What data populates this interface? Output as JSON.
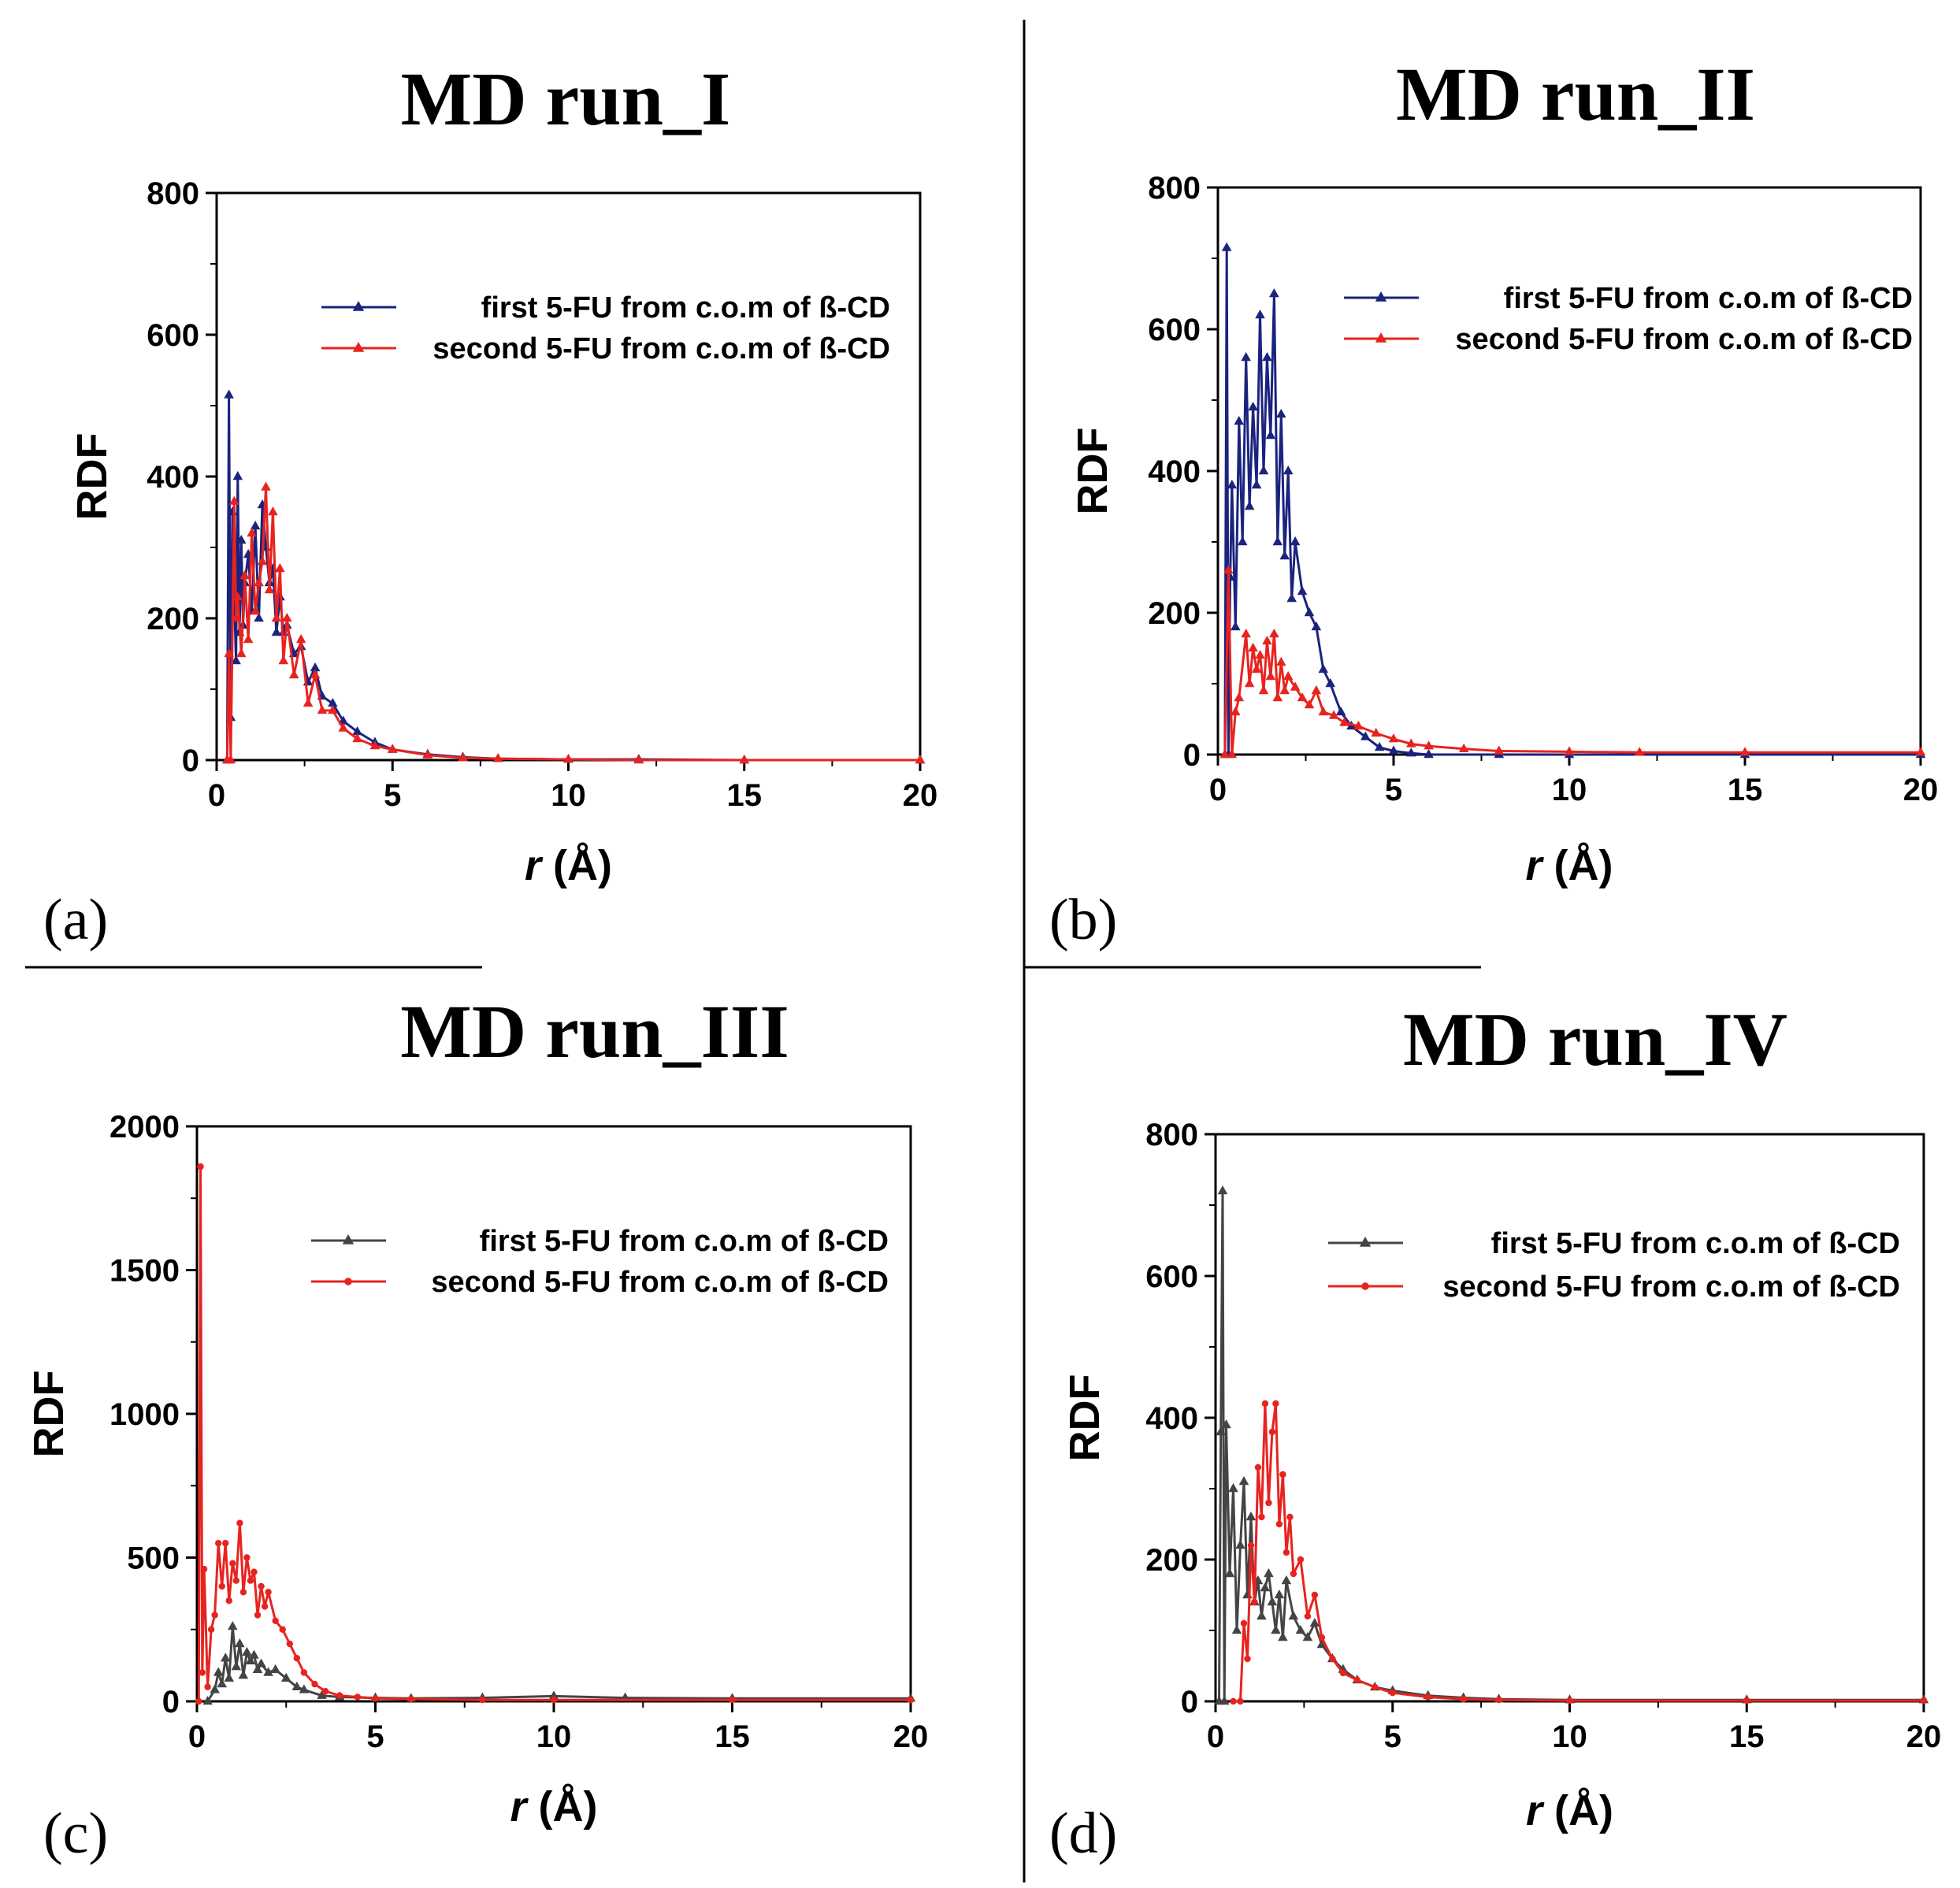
{
  "chart_data": [
    {
      "panel": "(a)",
      "title": "MD run_I",
      "type": "line",
      "ylabel": "RDF",
      "xlabel_italic": "r",
      "xlabel_rest": " (Å)",
      "xlim": [
        0,
        20
      ],
      "ylim": [
        0,
        800
      ],
      "xticks": [
        0,
        5,
        10,
        15,
        20
      ],
      "yticks": [
        0,
        200,
        400,
        600,
        800
      ],
      "legend": "top-right",
      "series": [
        {
          "name": "first 5-FU from c.o.m of ß-CD",
          "color": "#1a237e",
          "marker": "triangle",
          "x": [
            0.3,
            0.35,
            0.4,
            0.45,
            0.5,
            0.55,
            0.6,
            0.65,
            0.7,
            0.75,
            0.8,
            0.9,
            1.0,
            1.1,
            1.2,
            1.3,
            1.4,
            1.5,
            1.6,
            1.7,
            1.8,
            1.9,
            2.0,
            2.2,
            2.4,
            2.6,
            2.8,
            3.0,
            3.3,
            3.6,
            4.0,
            4.5,
            5.0,
            6.0,
            7.0,
            8.0,
            10.0,
            12.0,
            15.0,
            20.0
          ],
          "y": [
            0,
            515,
            60,
            350,
            230,
            140,
            400,
            180,
            310,
            190,
            250,
            290,
            210,
            330,
            200,
            360,
            300,
            250,
            270,
            180,
            230,
            180,
            190,
            150,
            160,
            110,
            130,
            90,
            80,
            55,
            40,
            25,
            15,
            8,
            4,
            2,
            1,
            1,
            0,
            0
          ]
        },
        {
          "name": "second 5-FU from c.o.m of ß-CD",
          "color": "#e8231f",
          "marker": "triangle",
          "x": [
            0.3,
            0.35,
            0.4,
            0.5,
            0.55,
            0.6,
            0.7,
            0.8,
            0.9,
            1.0,
            1.1,
            1.2,
            1.3,
            1.4,
            1.5,
            1.6,
            1.7,
            1.8,
            1.9,
            2.0,
            2.2,
            2.4,
            2.6,
            2.8,
            3.0,
            3.3,
            3.6,
            4.0,
            4.5,
            5.0,
            6.0,
            7.0,
            8.0,
            10.0,
            12.0,
            15.0,
            20.0
          ],
          "y": [
            0,
            150,
            0,
            365,
            200,
            230,
            150,
            260,
            170,
            320,
            210,
            250,
            280,
            385,
            240,
            350,
            200,
            270,
            140,
            200,
            120,
            170,
            80,
            120,
            70,
            70,
            45,
            30,
            20,
            15,
            7,
            3,
            2,
            1,
            0,
            0,
            0
          ]
        }
      ]
    },
    {
      "panel": "(b)",
      "title": "MD run_II",
      "type": "line",
      "ylabel": "RDF",
      "xlabel_italic": "r",
      "xlabel_rest": " (Å)",
      "xlim": [
        0,
        20
      ],
      "ylim": [
        0,
        800
      ],
      "xticks": [
        0,
        5,
        10,
        15,
        20
      ],
      "yticks": [
        0,
        200,
        400,
        600,
        800
      ],
      "legend": "top-right",
      "series": [
        {
          "name": "first 5-FU from c.o.m of ß-CD",
          "color": "#1a237e",
          "marker": "triangle",
          "x": [
            0.2,
            0.25,
            0.3,
            0.35,
            0.4,
            0.5,
            0.6,
            0.7,
            0.8,
            0.9,
            1.0,
            1.1,
            1.2,
            1.3,
            1.4,
            1.5,
            1.6,
            1.7,
            1.8,
            1.9,
            2.0,
            2.1,
            2.2,
            2.4,
            2.6,
            2.8,
            3.0,
            3.2,
            3.5,
            3.8,
            4.2,
            4.6,
            5.0,
            5.5,
            6.0,
            8.0,
            10.0,
            15.0,
            20.0
          ],
          "y": [
            0,
            715,
            0,
            250,
            380,
            180,
            470,
            300,
            560,
            350,
            490,
            380,
            620,
            400,
            560,
            450,
            650,
            300,
            480,
            280,
            400,
            220,
            300,
            230,
            200,
            180,
            120,
            100,
            60,
            40,
            25,
            10,
            5,
            2,
            0,
            0,
            0,
            0,
            0
          ]
        },
        {
          "name": "second 5-FU from c.o.m of ß-CD",
          "color": "#e8231f",
          "marker": "triangle",
          "x": [
            0.2,
            0.3,
            0.4,
            0.5,
            0.6,
            0.8,
            0.9,
            1.0,
            1.1,
            1.2,
            1.3,
            1.4,
            1.5,
            1.6,
            1.7,
            1.8,
            1.9,
            2.0,
            2.2,
            2.4,
            2.6,
            2.8,
            3.0,
            3.3,
            3.6,
            4.0,
            4.5,
            5.0,
            5.5,
            6.0,
            7.0,
            8.0,
            10.0,
            12.0,
            15.0,
            20.0
          ],
          "y": [
            0,
            260,
            0,
            60,
            80,
            170,
            100,
            150,
            120,
            140,
            90,
            160,
            110,
            170,
            80,
            130,
            90,
            110,
            95,
            80,
            70,
            90,
            60,
            55,
            45,
            40,
            30,
            22,
            15,
            12,
            8,
            5,
            4,
            3,
            3,
            3
          ]
        }
      ]
    },
    {
      "panel": "(c)",
      "title": "MD run_III",
      "type": "line",
      "ylabel": "RDF",
      "xlabel_italic": "r",
      "xlabel_rest": " (Å)",
      "xlim": [
        0,
        20
      ],
      "ylim": [
        0,
        2000
      ],
      "xticks": [
        0,
        5,
        10,
        15,
        20
      ],
      "yticks": [
        0,
        500,
        1000,
        1500,
        2000
      ],
      "legend": "top-right",
      "series": [
        {
          "name": "first 5-FU from c.o.m of ß-CD",
          "color": "#444444",
          "marker": "triangle",
          "x": [
            0.3,
            0.5,
            0.6,
            0.7,
            0.8,
            0.9,
            1.0,
            1.1,
            1.2,
            1.3,
            1.4,
            1.5,
            1.6,
            1.7,
            1.8,
            2.0,
            2.2,
            2.5,
            2.8,
            3.0,
            3.5,
            4.0,
            5.0,
            6.0,
            8.0,
            10.0,
            12.0,
            15.0,
            20.0
          ],
          "y": [
            0,
            40,
            100,
            60,
            150,
            80,
            260,
            120,
            200,
            90,
            170,
            140,
            160,
            110,
            130,
            100,
            110,
            80,
            50,
            40,
            20,
            15,
            12,
            10,
            12,
            18,
            12,
            10,
            10
          ]
        },
        {
          "name": "second 5-FU from c.o.m of ß-CD",
          "color": "#e8231f",
          "marker": "circle",
          "x": [
            0.05,
            0.1,
            0.15,
            0.2,
            0.3,
            0.4,
            0.5,
            0.6,
            0.7,
            0.8,
            0.9,
            1.0,
            1.1,
            1.2,
            1.3,
            1.4,
            1.5,
            1.6,
            1.7,
            1.8,
            1.9,
            2.0,
            2.2,
            2.4,
            2.6,
            2.8,
            3.0,
            3.3,
            3.6,
            4.0,
            4.5,
            5.0,
            6.0,
            8.0,
            10.0,
            15.0,
            20.0
          ],
          "y": [
            0,
            1860,
            100,
            460,
            50,
            250,
            300,
            550,
            400,
            550,
            350,
            480,
            420,
            620,
            380,
            500,
            420,
            450,
            300,
            400,
            330,
            380,
            280,
            250,
            200,
            150,
            100,
            60,
            35,
            20,
            15,
            10,
            8,
            5,
            5,
            5,
            5
          ]
        }
      ]
    },
    {
      "panel": "(d)",
      "title": "MD run_IV",
      "type": "line",
      "ylabel": "RDF",
      "xlabel_italic": "r",
      "xlabel_rest": " (Å)",
      "xlim": [
        0,
        20
      ],
      "ylim": [
        0,
        800
      ],
      "xticks": [
        0,
        5,
        10,
        15,
        20
      ],
      "yticks": [
        0,
        200,
        400,
        600,
        800
      ],
      "legend": "top-right",
      "series": [
        {
          "name": "first 5-FU from c.o.m of ß-CD",
          "color": "#444444",
          "marker": "triangle",
          "x": [
            0.1,
            0.15,
            0.2,
            0.25,
            0.3,
            0.4,
            0.5,
            0.6,
            0.7,
            0.8,
            0.9,
            1.0,
            1.1,
            1.2,
            1.3,
            1.4,
            1.5,
            1.6,
            1.7,
            1.8,
            1.9,
            2.0,
            2.2,
            2.4,
            2.6,
            2.8,
            3.0,
            3.3,
            3.6,
            4.0,
            4.5,
            5.0,
            6.0,
            7.0,
            8.0,
            10.0,
            15.0,
            20.0
          ],
          "y": [
            0,
            380,
            720,
            0,
            390,
            180,
            300,
            100,
            220,
            310,
            150,
            260,
            140,
            170,
            120,
            160,
            180,
            140,
            100,
            150,
            90,
            170,
            120,
            100,
            90,
            110,
            80,
            60,
            45,
            30,
            20,
            15,
            8,
            5,
            3,
            2,
            2,
            2
          ]
        },
        {
          "name": "second 5-FU from c.o.m of ß-CD",
          "color": "#e8231f",
          "marker": "circle",
          "x": [
            0.5,
            0.7,
            0.8,
            0.9,
            1.0,
            1.1,
            1.2,
            1.3,
            1.4,
            1.5,
            1.6,
            1.7,
            1.8,
            1.9,
            2.0,
            2.1,
            2.2,
            2.4,
            2.6,
            2.8,
            3.0,
            3.3,
            3.6,
            4.0,
            4.5,
            5.0,
            6.0,
            7.0,
            8.0,
            10.0,
            15.0,
            20.0
          ],
          "y": [
            0,
            0,
            110,
            60,
            220,
            140,
            330,
            260,
            420,
            280,
            380,
            420,
            250,
            320,
            210,
            260,
            180,
            200,
            120,
            150,
            90,
            60,
            40,
            30,
            20,
            12,
            6,
            3,
            2,
            1,
            1,
            1
          ]
        }
      ]
    }
  ]
}
